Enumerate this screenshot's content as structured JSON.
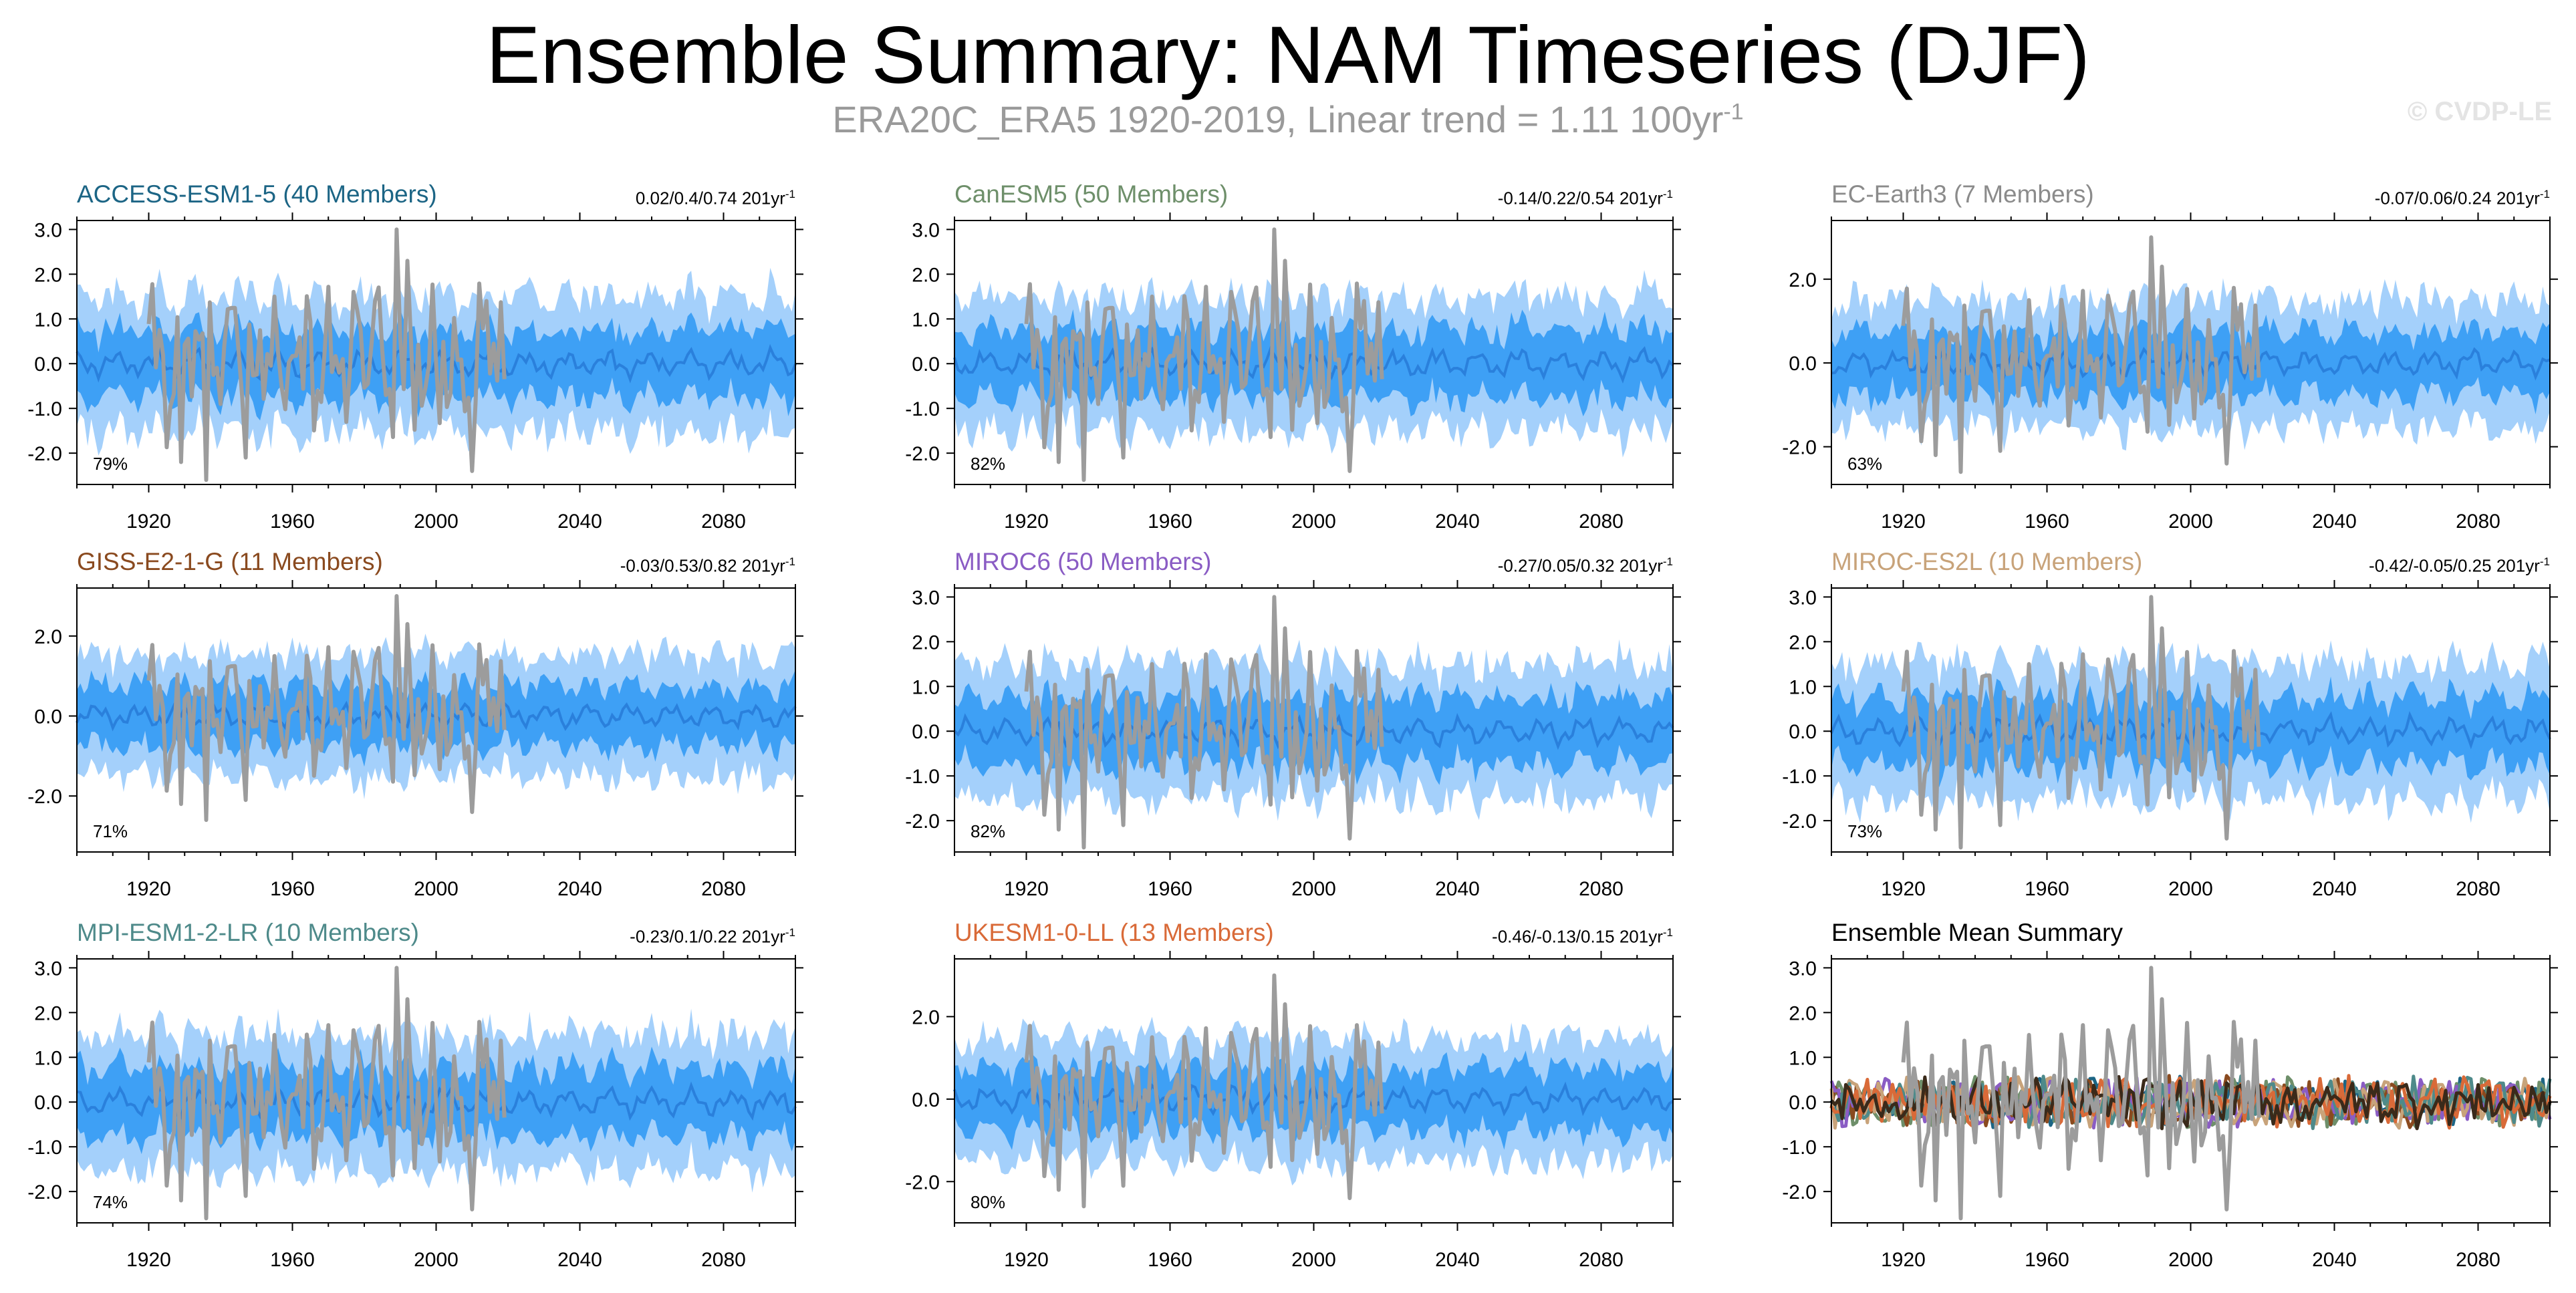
{
  "header": {
    "title": "Ensemble Summary: NAM Timeseries (DJF)",
    "subtitle_main": "ERA20C_ERA5 1920-2019, Linear trend = 1.11 100yr",
    "subtitle_exp": "-1",
    "watermark": "© CVDP-LE"
  },
  "colors": {
    "outer_band": "#a4d0fb",
    "inner_band": "#3ea0f5",
    "ensemble_mean_line": "#2a80dc",
    "observations": "#9c9c9c"
  },
  "panels": [
    {
      "title": "ACCESS-ESM1-5 (40 Members)",
      "title_color": "#1c6585",
      "trend": "0.02/0.4/0.74 201yr",
      "trend_exp": "-1",
      "percent": "79%",
      "yticks": [
        "3.0",
        "2.0",
        "1.0",
        "0.0",
        "-1.0",
        "-2.0"
      ],
      "ylim": [
        -2.7,
        3.2
      ]
    },
    {
      "title": "CanESM5 (50 Members)",
      "title_color": "#6e8f6a",
      "trend": "-0.14/0.22/0.54 201yr",
      "trend_exp": "-1",
      "percent": "82%",
      "yticks": [
        "3.0",
        "2.0",
        "1.0",
        "0.0",
        "-1.0",
        "-2.0"
      ],
      "ylim": [
        -2.7,
        3.2
      ]
    },
    {
      "title": "EC-Earth3 (7 Members)",
      "title_color": "#8b8b8b",
      "trend": "-0.07/0.06/0.24 201yr",
      "trend_exp": "-1",
      "percent": "63%",
      "yticks": [
        "2.0",
        "0.0",
        "-2.0"
      ],
      "ylim": [
        -2.9,
        3.4
      ]
    },
    {
      "title": "GISS-E2-1-G (11 Members)",
      "title_color": "#8a4a1f",
      "trend": "-0.03/0.53/0.82 201yr",
      "trend_exp": "-1",
      "percent": "71%",
      "yticks": [
        "2.0",
        "0.0",
        "-2.0"
      ],
      "ylim": [
        -3.4,
        3.2
      ]
    },
    {
      "title": "MIROC6 (50 Members)",
      "title_color": "#8a5cc4",
      "trend": "-0.27/0.05/0.32 201yr",
      "trend_exp": "-1",
      "percent": "82%",
      "yticks": [
        "3.0",
        "2.0",
        "1.0",
        "0.0",
        "-1.0",
        "-2.0"
      ],
      "ylim": [
        -2.7,
        3.2
      ]
    },
    {
      "title": "MIROC-ES2L (10 Members)",
      "title_color": "#c8a37a",
      "trend": "-0.42/-0.05/0.25 201yr",
      "trend_exp": "-1",
      "percent": "73%",
      "yticks": [
        "3.0",
        "2.0",
        "1.0",
        "0.0",
        "-1.0",
        "-2.0"
      ],
      "ylim": [
        -2.7,
        3.2
      ]
    },
    {
      "title": "MPI-ESM1-2-LR (10 Members)",
      "title_color": "#4e8a8a",
      "trend": "-0.23/0.1/0.22 201yr",
      "trend_exp": "-1",
      "percent": "74%",
      "yticks": [
        "3.0",
        "2.0",
        "1.0",
        "0.0",
        "-1.0",
        "-2.0"
      ],
      "ylim": [
        -2.7,
        3.2
      ]
    },
    {
      "title": "UKESM1-0-LL (13 Members)",
      "title_color": "#d96a38",
      "trend": "-0.46/-0.13/0.15 201yr",
      "trend_exp": "-1",
      "percent": "80%",
      "yticks": [
        "2.0",
        "0.0",
        "-2.0"
      ],
      "ylim": [
        -3.0,
        3.4
      ]
    },
    {
      "title": "Ensemble Mean Summary",
      "title_color": "#000000",
      "trend": "",
      "trend_exp": "",
      "percent": "",
      "yticks": [
        "3.0",
        "2.0",
        "1.0",
        "0.0",
        "-1.0",
        "-2.0"
      ],
      "ylim": [
        -2.7,
        3.2
      ]
    }
  ],
  "chart_data": {
    "type": "area",
    "title": "Ensemble Summary: NAM Timeseries (DJF)",
    "x_range": [
      1900,
      2100
    ],
    "x_ticks": [
      "1920",
      "1960",
      "2000",
      "2040",
      "2080"
    ],
    "observations": {
      "period": [
        1920,
        2019
      ],
      "approx_peak": {
        "year": 1989,
        "value": 3.0
      },
      "approx_min": {
        "year": 1936,
        "value": -2.6
      }
    },
    "ensemble_bands": {
      "outer_halfwidth_approx": 1.5,
      "inner_halfwidth_approx": 0.75
    },
    "ensemble_mean_summary_series": [
      {
        "color": "#1c6585"
      },
      {
        "color": "#6e8f6a"
      },
      {
        "color": "#8a4a1f"
      },
      {
        "color": "#8a5cc4"
      },
      {
        "color": "#c8a37a"
      },
      {
        "color": "#4e8a8a"
      },
      {
        "color": "#d96a38"
      },
      {
        "color": "#3a2a1a"
      }
    ]
  }
}
